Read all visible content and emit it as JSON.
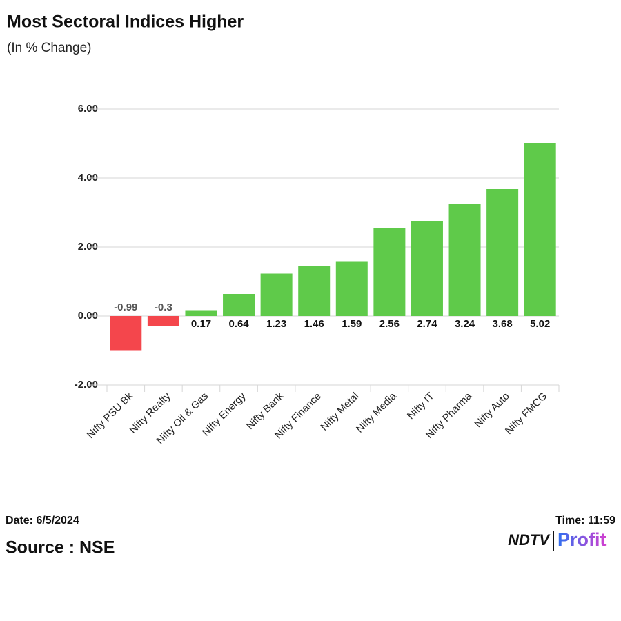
{
  "chart_data": {
    "type": "bar",
    "title": "Most Sectoral Indices Higher",
    "subtitle": "(In % Change)",
    "categories": [
      "Nifty PSU Bk",
      "Nifty Realty",
      "Nifty Oil & Gas",
      "Nifty Energy",
      "Nifty Bank",
      "Nifty Finance",
      "Nifty Metal",
      "Nifty Media",
      "Nifty IT",
      "Nifty Pharma",
      "Nifty Auto",
      "Nifty FMCG"
    ],
    "values": [
      -0.99,
      -0.3,
      0.17,
      0.64,
      1.23,
      1.46,
      1.59,
      2.56,
      2.74,
      3.24,
      3.68,
      5.02
    ],
    "colors": {
      "positive": "#5fca4a",
      "negative": "#f4464c"
    },
    "ylim": [
      -2,
      6
    ],
    "yticks": [
      {
        "value": -2,
        "label": "-2.00"
      },
      {
        "value": 0,
        "label": "0.00"
      },
      {
        "value": 2,
        "label": "2.00"
      },
      {
        "value": 4,
        "label": "4.00"
      },
      {
        "value": 6,
        "label": "6.00"
      }
    ],
    "grid": true,
    "date": "Date: 6/5/2024",
    "time": "Time: 11:59",
    "source": "Source : NSE",
    "logo": [
      "NDTV",
      "Profit"
    ]
  }
}
